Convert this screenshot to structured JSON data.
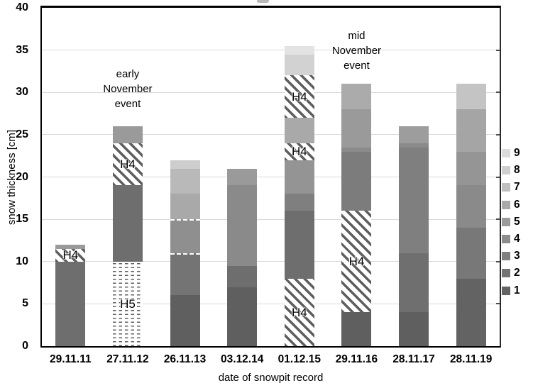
{
  "figure": {
    "background": "#ffffff",
    "gridline_color": "#d9d9d9",
    "axis_color": "#000000"
  },
  "chart_data": {
    "type": "bar",
    "stacked": true,
    "title": "",
    "xlabel": "date of snowpit record",
    "ylabel": "snow thickness [cm]",
    "ylim": [
      0,
      40
    ],
    "yticks": [
      0,
      5,
      10,
      15,
      20,
      25,
      30,
      35,
      40
    ],
    "grid": true,
    "legend_position": "right",
    "legend": [
      {
        "label": "9",
        "color": "#dbdbdb"
      },
      {
        "label": "8",
        "color": "#cecece"
      },
      {
        "label": "7",
        "color": "#c0c0c0"
      },
      {
        "label": "6",
        "color": "#a9a9a9"
      },
      {
        "label": "5",
        "color": "#9b9b9b"
      },
      {
        "label": "4",
        "color": "#8d8d8d"
      },
      {
        "label": "3",
        "color": "#808080"
      },
      {
        "label": "2",
        "color": "#747474"
      },
      {
        "label": "1",
        "color": "#646464"
      }
    ],
    "patterns": {
      "H4": {
        "name": "diagonal-hatch",
        "stroke": "#5e5e5e",
        "background": "#ffffff"
      },
      "H5": {
        "name": "dashed-dot-rows",
        "stroke": "#5e5e5e",
        "background": "#ffffff"
      }
    },
    "categories": [
      "29.11.11",
      "27.11.12",
      "26.11.13",
      "03.12.14",
      "01.12.15",
      "29.11.16",
      "28.11.17",
      "28.11.19"
    ],
    "bars": [
      {
        "date": "29.11.11",
        "total": 12,
        "segments": [
          {
            "from": 0,
            "to": 10,
            "color": "#6e6e6e"
          },
          {
            "from": 10,
            "to": 11.5,
            "pattern": "H4",
            "label": "H4"
          },
          {
            "from": 11.5,
            "to": 12,
            "color": "#9a9a9a"
          }
        ]
      },
      {
        "date": "27.11.12",
        "total": 26,
        "segments": [
          {
            "from": 0,
            "to": 10,
            "pattern": "H5",
            "label": "H5"
          },
          {
            "from": 10,
            "to": 19,
            "color": "#6e6e6e"
          },
          {
            "from": 19,
            "to": 24,
            "pattern": "H4",
            "label": "H4"
          },
          {
            "from": 24,
            "to": 26,
            "color": "#9a9a9a"
          }
        ]
      },
      {
        "date": "26.11.13",
        "total": 22,
        "segments": [
          {
            "from": 0,
            "to": 6,
            "color": "#5f5f5f"
          },
          {
            "from": 6,
            "to": 11,
            "color": "#747474",
            "sep_top": true
          },
          {
            "from": 11,
            "to": 15,
            "color": "#8f8f8f",
            "sep_top": true
          },
          {
            "from": 15,
            "to": 18,
            "color": "#a9a9a9"
          },
          {
            "from": 18,
            "to": 21,
            "color": "#b9b9b9"
          },
          {
            "from": 21,
            "to": 22,
            "color": "#cdcdcd"
          }
        ]
      },
      {
        "date": "03.12.14",
        "total": 21,
        "segments": [
          {
            "from": 0,
            "to": 7,
            "color": "#5f5f5f"
          },
          {
            "from": 7,
            "to": 9.5,
            "color": "#6e6e6e"
          },
          {
            "from": 9.5,
            "to": 19,
            "color": "#8a8a8a"
          },
          {
            "from": 19,
            "to": 21,
            "color": "#9a9a9a"
          }
        ]
      },
      {
        "date": "01.12.15",
        "total": 35.5,
        "segments": [
          {
            "from": 0,
            "to": 8,
            "pattern": "H4",
            "label": "H4"
          },
          {
            "from": 8,
            "to": 16,
            "color": "#6e6e6e"
          },
          {
            "from": 16,
            "to": 18,
            "color": "#7f7f7f"
          },
          {
            "from": 18,
            "to": 22,
            "color": "#949494"
          },
          {
            "from": 22,
            "to": 24,
            "pattern": "H4",
            "label": "H4"
          },
          {
            "from": 24,
            "to": 27,
            "color": "#a9a9a9"
          },
          {
            "from": 27,
            "to": 32,
            "pattern": "H4",
            "label": "H4"
          },
          {
            "from": 32,
            "to": 34.5,
            "color": "#d2d2d2"
          },
          {
            "from": 34.5,
            "to": 35.5,
            "color": "#e3e3e3"
          }
        ]
      },
      {
        "date": "29.11.16",
        "total": 31,
        "segments": [
          {
            "from": 0,
            "to": 4,
            "color": "#5f5f5f"
          },
          {
            "from": 4,
            "to": 16,
            "pattern": "H4",
            "label": "H4"
          },
          {
            "from": 16,
            "to": 23,
            "color": "#7c7c7c"
          },
          {
            "from": 23,
            "to": 23.5,
            "color": "#8b8b8b"
          },
          {
            "from": 23.5,
            "to": 28,
            "color": "#9a9a9a"
          },
          {
            "from": 28,
            "to": 31,
            "color": "#ababab"
          }
        ]
      },
      {
        "date": "28.11.17",
        "total": 26,
        "segments": [
          {
            "from": 0,
            "to": 4,
            "color": "#5f5f5f"
          },
          {
            "from": 4,
            "to": 11,
            "color": "#6f6f6f"
          },
          {
            "from": 11,
            "to": 23.5,
            "color": "#7f7f7f"
          },
          {
            "from": 23.5,
            "to": 24,
            "color": "#8a8a8a"
          },
          {
            "from": 24,
            "to": 26,
            "color": "#9d9d9d"
          }
        ]
      },
      {
        "date": "28.11.19",
        "total": 31,
        "segments": [
          {
            "from": 0,
            "to": 8,
            "color": "#636363"
          },
          {
            "from": 8,
            "to": 14,
            "color": "#787878"
          },
          {
            "from": 14,
            "to": 19,
            "color": "#8a8a8a"
          },
          {
            "from": 19,
            "to": 23,
            "color": "#959595"
          },
          {
            "from": 23,
            "to": 28,
            "color": "#a5a5a5"
          },
          {
            "from": 28,
            "to": 31,
            "color": "#c4c4c4"
          }
        ]
      }
    ],
    "annotations": [
      {
        "lines": [
          "early",
          "November",
          "event"
        ],
        "anchor_category_index": 1,
        "top_value": 33.0
      },
      {
        "lines": [
          "mid",
          "November",
          "event"
        ],
        "anchor_category_index": 5,
        "top_value": 37.6
      }
    ]
  }
}
